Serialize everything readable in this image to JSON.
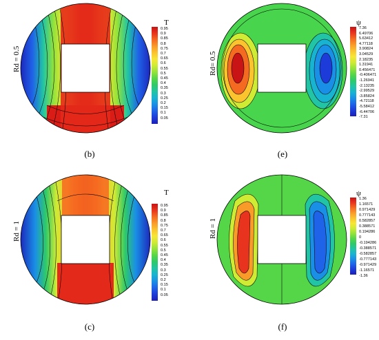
{
  "panels": {
    "b": {
      "caption": "(b)",
      "side": "Rd = 0.5",
      "legend_title": "T"
    },
    "e": {
      "caption": "(e)",
      "side": "Rd= 0.5",
      "legend_title": "ψ"
    },
    "c": {
      "caption": "(c)",
      "side": "Rd = 1",
      "legend_title": "T"
    },
    "f": {
      "caption": "(f)",
      "side": "Rd = 1",
      "legend_title": "ψ"
    }
  },
  "legends": {
    "T": [
      "0.95",
      "0.9",
      "0.85",
      "0.8",
      "0.75",
      "0.7",
      "0.65",
      "0.6",
      "0.55",
      "0.5",
      "0.45",
      "0.4",
      "0.35",
      "0.3",
      "0.25",
      "0.2",
      "0.15",
      "0.1",
      "0.05"
    ],
    "psi_e": [
      "7.36",
      "6.49706",
      "5.63412",
      "4.77118",
      "3.90824",
      "3.04529",
      "2.18235",
      "1.31941",
      "0.456471",
      "-0.406471",
      "-1.26941",
      "-2.13235",
      "-2.99529",
      "-3.85824",
      "-4.72118",
      "-5.58412",
      "-6.44706",
      "-7.31"
    ],
    "psi_f": [
      "1.36",
      "1.16571",
      "0.971429",
      "0.777143",
      "0.582857",
      "0.388571",
      "0.194286",
      "0",
      "-0.194286",
      "-0.388571",
      "-0.582857",
      "-0.777143",
      "-0.971429",
      "-1.16571",
      "-1.36"
    ]
  },
  "colors": {
    "scale": [
      "#c81414",
      "#e8341e",
      "#f56a21",
      "#f99b29",
      "#fbc42f",
      "#f7e635",
      "#cfeb34",
      "#93e33a",
      "#55d648",
      "#2ec96a",
      "#21c4a4",
      "#19b3d2",
      "#1a8fe6",
      "#1f63e8",
      "#1d3bd8",
      "#1c20b8"
    ]
  }
}
